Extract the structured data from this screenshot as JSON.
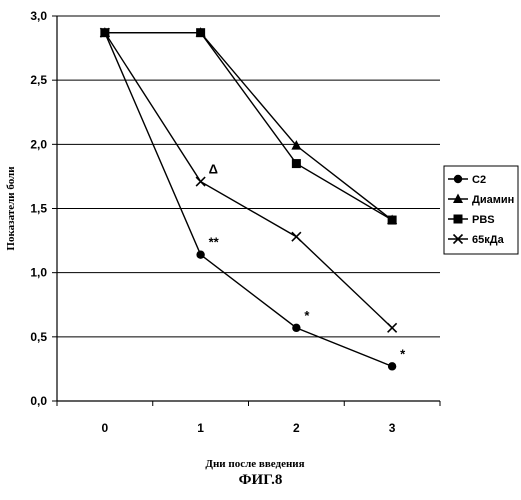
{
  "chart_data": {
    "type": "line",
    "title": "",
    "xlabel": "Дни после введения",
    "ylabel": "Показатели боли",
    "categories": [
      "0",
      "1",
      "2",
      "3"
    ],
    "x": [
      0,
      1,
      2,
      3
    ],
    "ylim": [
      0,
      3
    ],
    "yticks": [
      "0,0",
      "0,5",
      "1,0",
      "1,5",
      "2,0",
      "2,5",
      "3,0"
    ],
    "ytick_values": [
      0,
      0.5,
      1.0,
      1.5,
      2.0,
      2.5,
      3.0
    ],
    "grid": true,
    "legend_position": "right",
    "series": [
      {
        "name": "C2",
        "marker": "circle",
        "values": [
          2.87,
          1.14,
          0.57,
          0.27
        ]
      },
      {
        "name": "Диамин",
        "marker": "triangle",
        "values": [
          2.87,
          2.87,
          1.99,
          1.41
        ]
      },
      {
        "name": "PBS",
        "marker": "square",
        "values": [
          2.87,
          2.87,
          1.85,
          1.41
        ]
      },
      {
        "name": "65кДа",
        "marker": "cross",
        "values": [
          2.87,
          1.71,
          1.28,
          0.57
        ]
      }
    ],
    "annotations": [
      {
        "text": "Δ",
        "x": 1,
        "y": 1.71
      },
      {
        "text": "**",
        "x": 1,
        "y": 1.14
      },
      {
        "text": "*",
        "x": 2,
        "y": 0.57
      },
      {
        "text": "*",
        "x": 3,
        "y": 0.27
      }
    ]
  },
  "caption": "ФИГ.8"
}
